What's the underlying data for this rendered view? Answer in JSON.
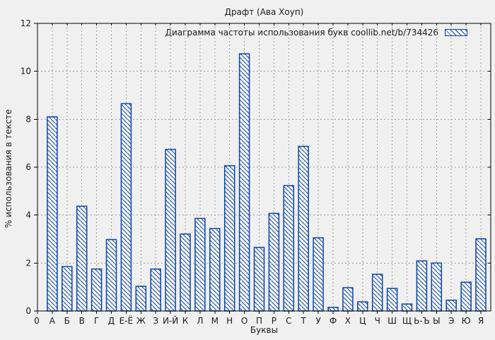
{
  "chart_data": {
    "type": "bar",
    "title": "Драфт (Ава Хоуп)",
    "legend_label": "Диаграмма частоты использования букв coollib.net/b/734426",
    "legend_position": "top-right",
    "xlabel": "Буквы",
    "ylabel": "% использования в тексте",
    "x_origin_label": "0",
    "categories": [
      "А",
      "Б",
      "В",
      "Г",
      "Д",
      "Е-Ё",
      "Ж",
      "З",
      "И-Й",
      "К",
      "Л",
      "М",
      "Н",
      "О",
      "П",
      "Р",
      "С",
      "Т",
      "У",
      "Ф",
      "Х",
      "Ц",
      "Ч",
      "Ш",
      "Щ",
      "Ь-Ъ",
      "Ы",
      "Э",
      "Ю",
      "Я"
    ],
    "values": [
      8.1,
      1.85,
      4.37,
      1.75,
      2.98,
      8.65,
      1.03,
      1.75,
      6.74,
      3.21,
      3.86,
      3.44,
      6.06,
      10.73,
      2.65,
      4.07,
      5.23,
      6.87,
      3.05,
      0.15,
      0.97,
      0.38,
      1.53,
      0.94,
      0.29,
      2.09,
      2.0,
      0.45,
      1.2,
      3.01
    ],
    "ylim": [
      0,
      12
    ],
    "yticks": [
      0,
      2,
      4,
      6,
      8,
      10,
      12
    ],
    "grid": true,
    "colors": {
      "background": "#f0f0f0",
      "bar_stroke": "#0b45a8",
      "bar_fill_bg": "#f7f7f7",
      "grid": "#a0a0a0",
      "axis": "#000000",
      "text": "#1a1a1a"
    }
  }
}
